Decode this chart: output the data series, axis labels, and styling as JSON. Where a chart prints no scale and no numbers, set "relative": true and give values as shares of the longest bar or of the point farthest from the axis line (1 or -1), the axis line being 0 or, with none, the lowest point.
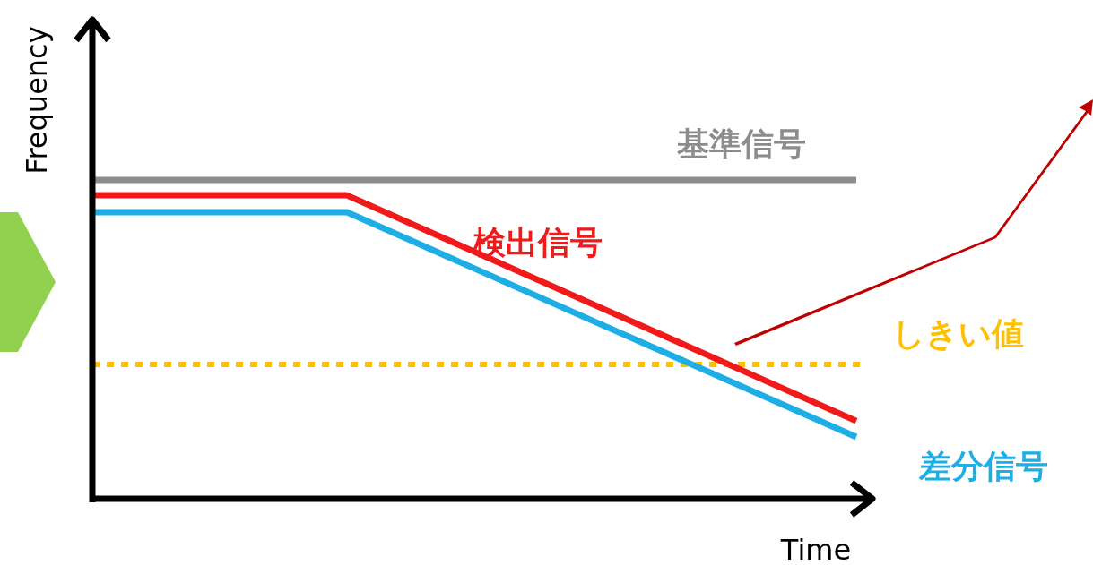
{
  "chart_data": {
    "type": "line",
    "xlabel": "Time",
    "ylabel": "Frequency",
    "relative": true,
    "categories": [
      null,
      null,
      null,
      null
    ],
    "series": [
      {
        "name": "基準信号",
        "color": "#8c8c8c",
        "values": [
          1,
          1,
          1,
          1
        ]
      },
      {
        "name": "検出信号",
        "color": "#f01a1a",
        "values": [
          0.952,
          0.952,
          0.598,
          0.244
        ]
      },
      {
        "name": "差分信号",
        "color": "#1eaee6",
        "values": [
          0.899,
          0.899,
          0.546,
          0.194
        ]
      }
    ],
    "ref_lines": [
      {
        "axis": "y",
        "value": 0.421,
        "label": "しきい値",
        "color": "#ffc000",
        "line_style": "dotted"
      }
    ]
  }
}
